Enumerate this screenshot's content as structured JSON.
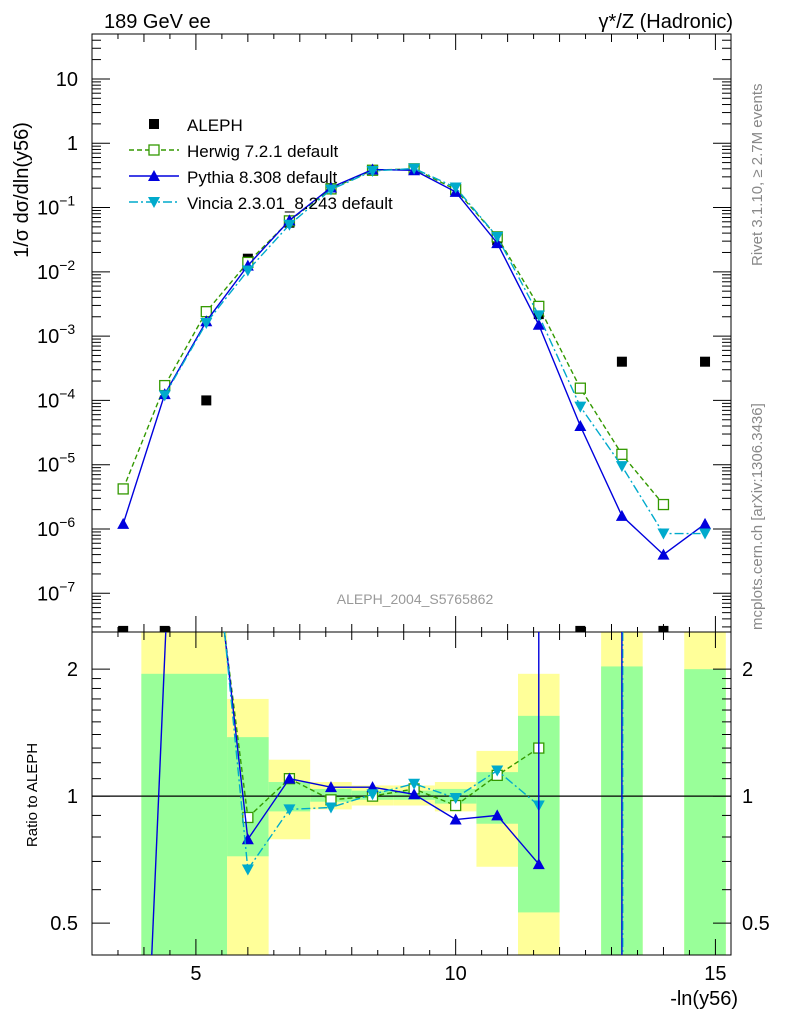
{
  "header": {
    "left": "189 GeV ee",
    "right": "γ*/Z (Hadronic)"
  },
  "side_labels": {
    "rivet": "Rivet 3.1.10, ≥ 2.7M events",
    "mcplots": "mcplots.cern.ch [arXiv:1306.3436]"
  },
  "analysis_id": "ALEPH_2004_S5765862",
  "chart_data": [
    {
      "type": "scatter",
      "title": "189 GeV ee",
      "ylabel": "1/σ dσ/dln(y56)",
      "yscale": "log",
      "xlim": [
        3.0,
        15.3
      ],
      "ylim": [
        2.5e-08,
        50
      ],
      "y_ticks": [
        {
          "value": 1e-07,
          "base": "10",
          "exp": "−7"
        },
        {
          "value": 1e-06,
          "base": "10",
          "exp": "−6"
        },
        {
          "value": 1e-05,
          "base": "10",
          "exp": "−5"
        },
        {
          "value": 0.0001,
          "base": "10",
          "exp": "−4"
        },
        {
          "value": 0.001,
          "base": "10",
          "exp": "−3"
        },
        {
          "value": 0.01,
          "base": "10",
          "exp": "−2"
        },
        {
          "value": 0.1,
          "base": "10",
          "exp": "−1"
        },
        {
          "value": 1,
          "base": "1",
          "exp": ""
        },
        {
          "value": 10,
          "base": "10",
          "exp": ""
        }
      ],
      "legend": [
        "ALEPH",
        "Herwig 7.2.1 default",
        "Pythia 8.308 default",
        "Vincia 2.3.01_8.243 default"
      ],
      "series": [
        {
          "name": "ALEPH",
          "color": "#000000",
          "marker": "square",
          "x": [
            3.6,
            4.4,
            5.2,
            6.0,
            6.8,
            7.6,
            8.4,
            9.2,
            10.0,
            10.8,
            11.6,
            12.4,
            13.2,
            14.0,
            14.8
          ],
          "y": [
            2.6e-08,
            2.6e-08,
            0.0001,
            0.016,
            0.058,
            0.2,
            0.38,
            0.39,
            0.2,
            0.031,
            0.0022,
            2.6e-08,
            0.0004,
            2.6e-08,
            0.0004
          ]
        },
        {
          "name": "Herwig 7.2.1 default",
          "color": "#339900",
          "marker": "open-square",
          "dash": "5,3",
          "x": [
            3.6,
            4.4,
            5.2,
            6.0,
            6.8,
            7.6,
            8.4,
            9.2,
            10.0,
            10.8,
            11.6,
            12.4,
            13.2,
            14.0,
            14.8
          ],
          "y": [
            4.2e-06,
            0.00017,
            0.0024,
            0.014,
            0.062,
            0.195,
            0.38,
            0.4,
            0.19,
            0.035,
            0.0029,
            0.000155,
            1.45e-05,
            2.4e-06,
            null
          ]
        },
        {
          "name": "Pythia 8.308 default",
          "color": "#0000dd",
          "marker": "triangle-up",
          "dash": "",
          "x": [
            3.6,
            4.4,
            5.2,
            6.0,
            6.8,
            7.6,
            8.4,
            9.2,
            10.0,
            10.8,
            11.6,
            12.4,
            13.2,
            14.0,
            14.8
          ],
          "y": [
            1.2e-06,
            0.000125,
            0.0017,
            0.0125,
            0.063,
            0.205,
            0.39,
            0.38,
            0.175,
            0.028,
            0.0015,
            4e-05,
            1.6e-06,
            4e-07,
            1.2e-06
          ]
        },
        {
          "name": "Vincia 2.3.01_8.243 default",
          "color": "#00aacc",
          "marker": "triangle-down",
          "dash": "9,3,2,3",
          "x": [
            3.6,
            4.4,
            5.2,
            6.0,
            6.8,
            7.6,
            8.4,
            9.2,
            10.0,
            10.8,
            11.6,
            12.4,
            13.2,
            14.0,
            14.8
          ],
          "y": [
            null,
            0.00012,
            0.0016,
            0.0105,
            0.054,
            0.19,
            0.37,
            0.405,
            0.205,
            0.035,
            0.0021,
            8e-05,
            9.5e-06,
            8.5e-07,
            8.5e-07
          ]
        }
      ]
    },
    {
      "type": "line",
      "ylabel": "Ratio to ALEPH",
      "xlabel": "-ln(y56)",
      "yscale": "log",
      "xlim": [
        3.0,
        15.3
      ],
      "ylim": [
        0.42,
        2.45
      ],
      "x_ticks": [
        5,
        10,
        15
      ],
      "y_ticks": [
        0.5,
        1,
        2
      ],
      "reference": 1,
      "bands": [
        {
          "x0": 3.95,
          "x1": 5.6,
          "green": [
            0.0,
            1.95
          ],
          "yellow": [
            0.0,
            9.0
          ]
        },
        {
          "x0": 5.6,
          "x1": 6.4,
          "green": [
            0.72,
            1.38
          ],
          "yellow": [
            0.0,
            1.7
          ]
        },
        {
          "x0": 6.4,
          "x1": 7.2,
          "green": [
            0.92,
            1.08
          ],
          "yellow": [
            0.79,
            1.22
          ]
        },
        {
          "x0": 7.2,
          "x1": 8.0,
          "green": [
            0.97,
            1.04
          ],
          "yellow": [
            0.93,
            1.08
          ]
        },
        {
          "x0": 8.0,
          "x1": 8.8,
          "green": [
            0.98,
            1.03
          ],
          "yellow": [
            0.95,
            1.06
          ]
        },
        {
          "x0": 8.8,
          "x1": 9.6,
          "green": [
            0.98,
            1.03
          ],
          "yellow": [
            0.95,
            1.06
          ]
        },
        {
          "x0": 9.6,
          "x1": 10.4,
          "green": [
            0.96,
            1.04
          ],
          "yellow": [
            0.92,
            1.08
          ]
        },
        {
          "x0": 10.4,
          "x1": 11.2,
          "green": [
            0.86,
            1.14
          ],
          "yellow": [
            0.68,
            1.28
          ]
        },
        {
          "x0": 11.2,
          "x1": 12.0,
          "green": [
            0.53,
            1.55
          ],
          "yellow": [
            0.0,
            1.95
          ]
        },
        {
          "x0": 12.8,
          "x1": 13.6,
          "green": [
            0.0,
            2.03
          ],
          "yellow": [
            0.0,
            9.0
          ]
        },
        {
          "x0": 14.4,
          "x1": 15.2,
          "green": [
            0.0,
            2.0
          ],
          "yellow": [
            0.0,
            9.0
          ]
        }
      ],
      "series": [
        {
          "name": "Herwig 7.2.1 default",
          "x": [
            6.0,
            6.8,
            7.6,
            8.4,
            9.2,
            10.0,
            10.8,
            11.6
          ],
          "y": [
            0.89,
            1.1,
            0.98,
            1.0,
            1.04,
            0.95,
            1.12,
            1.3
          ]
        },
        {
          "name": "Pythia 8.308 default",
          "x": [
            6.0,
            6.8,
            7.6,
            8.4,
            9.2,
            10.0,
            10.8,
            11.6
          ],
          "y": [
            0.79,
            1.1,
            1.05,
            1.05,
            1.01,
            0.88,
            0.9,
            0.69
          ]
        },
        {
          "name": "Vincia 2.3.01_8.243 default",
          "x": [
            6.0,
            6.8,
            7.6,
            8.4,
            9.2,
            10.0,
            10.8,
            11.6
          ],
          "y": [
            0.67,
            0.93,
            0.94,
            1.01,
            1.07,
            0.99,
            1.15,
            0.95
          ]
        }
      ]
    }
  ]
}
